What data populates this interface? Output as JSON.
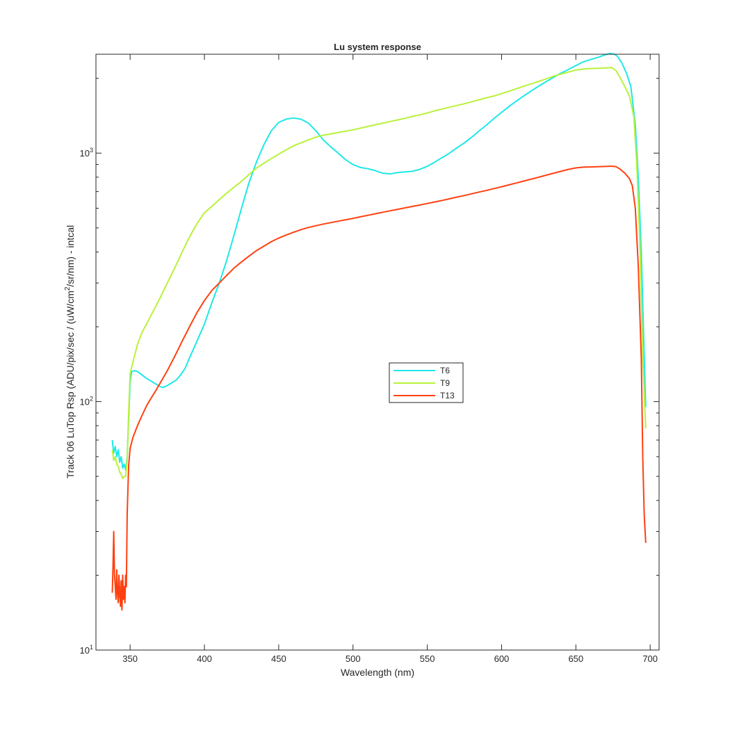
{
  "chart_data": {
    "type": "line",
    "title": "Lu system response",
    "xlabel": "Wavelength (nm)",
    "ylabel_parts": [
      "Track 06 LuTop Rsp (ADU/pix/sec / (uW/cm",
      "2",
      "/sr/nm) - intcal"
    ],
    "xlim": [
      327,
      706
    ],
    "ylim": [
      10,
      2500
    ],
    "yscale": "log",
    "grid": false,
    "legend_position": "center-right",
    "x_ticks": [
      350,
      400,
      450,
      500,
      550,
      600,
      650,
      700
    ],
    "y_major_ticks": [
      {
        "value": 10,
        "base": "10",
        "exp": "1"
      },
      {
        "value": 100,
        "base": "10",
        "exp": "2"
      },
      {
        "value": 1000,
        "base": "10",
        "exp": "3"
      }
    ],
    "series": [
      {
        "name": "T6",
        "color": "#1ee8e8",
        "points": [
          [
            338,
            70
          ],
          [
            339,
            62
          ],
          [
            340,
            66
          ],
          [
            341,
            60
          ],
          [
            342,
            64
          ],
          [
            343,
            57
          ],
          [
            344,
            60
          ],
          [
            345,
            54
          ],
          [
            346,
            56
          ],
          [
            347,
            53
          ],
          [
            348,
            60
          ],
          [
            349,
            85
          ],
          [
            350,
            120
          ],
          [
            351,
            132
          ],
          [
            353,
            133
          ],
          [
            355,
            132
          ],
          [
            358,
            128
          ],
          [
            361,
            124
          ],
          [
            364,
            121
          ],
          [
            367,
            118
          ],
          [
            370,
            115
          ],
          [
            372,
            114
          ],
          [
            375,
            116
          ],
          [
            378,
            119
          ],
          [
            381,
            122
          ],
          [
            384,
            128
          ],
          [
            387,
            136
          ],
          [
            390,
            150
          ],
          [
            395,
            175
          ],
          [
            400,
            205
          ],
          [
            405,
            250
          ],
          [
            410,
            300
          ],
          [
            415,
            370
          ],
          [
            420,
            470
          ],
          [
            425,
            600
          ],
          [
            430,
            760
          ],
          [
            435,
            920
          ],
          [
            440,
            1080
          ],
          [
            445,
            1230
          ],
          [
            450,
            1330
          ],
          [
            455,
            1370
          ],
          [
            460,
            1385
          ],
          [
            465,
            1370
          ],
          [
            470,
            1320
          ],
          [
            475,
            1230
          ],
          [
            480,
            1130
          ],
          [
            485,
            1060
          ],
          [
            490,
            1000
          ],
          [
            495,
            940
          ],
          [
            500,
            900
          ],
          [
            505,
            875
          ],
          [
            510,
            865
          ],
          [
            515,
            850
          ],
          [
            520,
            830
          ],
          [
            525,
            825
          ],
          [
            530,
            835
          ],
          [
            535,
            840
          ],
          [
            540,
            845
          ],
          [
            545,
            860
          ],
          [
            550,
            885
          ],
          [
            555,
            920
          ],
          [
            560,
            960
          ],
          [
            565,
            1000
          ],
          [
            570,
            1050
          ],
          [
            575,
            1100
          ],
          [
            580,
            1160
          ],
          [
            585,
            1230
          ],
          [
            590,
            1300
          ],
          [
            595,
            1380
          ],
          [
            600,
            1460
          ],
          [
            605,
            1540
          ],
          [
            610,
            1620
          ],
          [
            615,
            1700
          ],
          [
            620,
            1780
          ],
          [
            625,
            1860
          ],
          [
            630,
            1940
          ],
          [
            635,
            2020
          ],
          [
            640,
            2100
          ],
          [
            645,
            2170
          ],
          [
            650,
            2250
          ],
          [
            655,
            2330
          ],
          [
            660,
            2380
          ],
          [
            665,
            2430
          ],
          [
            670,
            2490
          ],
          [
            673,
            2520
          ],
          [
            676,
            2500
          ],
          [
            678,
            2450
          ],
          [
            681,
            2300
          ],
          [
            684,
            2100
          ],
          [
            687,
            1850
          ],
          [
            690,
            1300
          ],
          [
            692,
            800
          ],
          [
            694,
            400
          ],
          [
            696,
            150
          ],
          [
            697,
            95
          ]
        ]
      },
      {
        "name": "T9",
        "color": "#b8f23a",
        "points": [
          [
            338,
            64
          ],
          [
            339,
            58
          ],
          [
            340,
            60
          ],
          [
            341,
            56
          ],
          [
            342,
            55
          ],
          [
            343,
            52
          ],
          [
            344,
            51
          ],
          [
            345,
            49
          ],
          [
            346,
            50
          ],
          [
            347,
            50
          ],
          [
            348,
            58
          ],
          [
            349,
            90
          ],
          [
            350,
            130
          ],
          [
            352,
            145
          ],
          [
            355,
            170
          ],
          [
            358,
            190
          ],
          [
            361,
            205
          ],
          [
            364,
            222
          ],
          [
            367,
            240
          ],
          [
            370,
            260
          ],
          [
            375,
            300
          ],
          [
            380,
            345
          ],
          [
            385,
            400
          ],
          [
            390,
            460
          ],
          [
            395,
            520
          ],
          [
            400,
            575
          ],
          [
            405,
            610
          ],
          [
            410,
            650
          ],
          [
            415,
            690
          ],
          [
            420,
            730
          ],
          [
            425,
            770
          ],
          [
            430,
            820
          ],
          [
            435,
            870
          ],
          [
            440,
            910
          ],
          [
            445,
            950
          ],
          [
            450,
            990
          ],
          [
            455,
            1030
          ],
          [
            460,
            1070
          ],
          [
            465,
            1100
          ],
          [
            470,
            1130
          ],
          [
            475,
            1160
          ],
          [
            480,
            1180
          ],
          [
            485,
            1195
          ],
          [
            490,
            1210
          ],
          [
            495,
            1225
          ],
          [
            500,
            1240
          ],
          [
            505,
            1260
          ],
          [
            510,
            1280
          ],
          [
            515,
            1300
          ],
          [
            520,
            1320
          ],
          [
            525,
            1340
          ],
          [
            530,
            1360
          ],
          [
            535,
            1380
          ],
          [
            540,
            1405
          ],
          [
            545,
            1425
          ],
          [
            550,
            1450
          ],
          [
            555,
            1480
          ],
          [
            560,
            1505
          ],
          [
            565,
            1530
          ],
          [
            570,
            1555
          ],
          [
            575,
            1580
          ],
          [
            580,
            1610
          ],
          [
            585,
            1640
          ],
          [
            590,
            1670
          ],
          [
            595,
            1700
          ],
          [
            600,
            1735
          ],
          [
            605,
            1775
          ],
          [
            610,
            1815
          ],
          [
            615,
            1860
          ],
          [
            620,
            1900
          ],
          [
            625,
            1945
          ],
          [
            630,
            1990
          ],
          [
            635,
            2040
          ],
          [
            640,
            2080
          ],
          [
            645,
            2120
          ],
          [
            650,
            2160
          ],
          [
            655,
            2180
          ],
          [
            660,
            2190
          ],
          [
            665,
            2195
          ],
          [
            670,
            2200
          ],
          [
            674,
            2210
          ],
          [
            677,
            2150
          ],
          [
            680,
            2000
          ],
          [
            683,
            1850
          ],
          [
            686,
            1700
          ],
          [
            689,
            1400
          ],
          [
            691,
            900
          ],
          [
            693,
            450
          ],
          [
            695,
            150
          ],
          [
            697,
            78
          ]
        ]
      },
      {
        "name": "T13",
        "color": "#ff4010",
        "points": [
          [
            338,
            17
          ],
          [
            338.5,
            22
          ],
          [
            339,
            30
          ],
          [
            339.5,
            20
          ],
          [
            340,
            18
          ],
          [
            340.5,
            16
          ],
          [
            341,
            21
          ],
          [
            341.5,
            17
          ],
          [
            342,
            15.5
          ],
          [
            342.5,
            20
          ],
          [
            343,
            17
          ],
          [
            343.5,
            15
          ],
          [
            344,
            19
          ],
          [
            344.5,
            14.5
          ],
          [
            345,
            20
          ],
          [
            345.5,
            16
          ],
          [
            346,
            18
          ],
          [
            346.5,
            15.5
          ],
          [
            347,
            20
          ],
          [
            347.5,
            18
          ],
          [
            348,
            35
          ],
          [
            349,
            55
          ],
          [
            350,
            65
          ],
          [
            352,
            72
          ],
          [
            355,
            80
          ],
          [
            358,
            88
          ],
          [
            361,
            96
          ],
          [
            364,
            103
          ],
          [
            367,
            110
          ],
          [
            370,
            118
          ],
          [
            375,
            133
          ],
          [
            380,
            152
          ],
          [
            385,
            175
          ],
          [
            390,
            200
          ],
          [
            395,
            228
          ],
          [
            400,
            255
          ],
          [
            405,
            280
          ],
          [
            410,
            300
          ],
          [
            415,
            322
          ],
          [
            420,
            345
          ],
          [
            425,
            365
          ],
          [
            430,
            385
          ],
          [
            435,
            405
          ],
          [
            440,
            422
          ],
          [
            445,
            440
          ],
          [
            450,
            455
          ],
          [
            455,
            468
          ],
          [
            460,
            480
          ],
          [
            465,
            492
          ],
          [
            470,
            502
          ],
          [
            475,
            510
          ],
          [
            480,
            518
          ],
          [
            485,
            525
          ],
          [
            490,
            532
          ],
          [
            495,
            539
          ],
          [
            500,
            546
          ],
          [
            505,
            554
          ],
          [
            510,
            562
          ],
          [
            515,
            570
          ],
          [
            520,
            578
          ],
          [
            525,
            586
          ],
          [
            530,
            594
          ],
          [
            535,
            602
          ],
          [
            540,
            610
          ],
          [
            545,
            618
          ],
          [
            550,
            627
          ],
          [
            555,
            636
          ],
          [
            560,
            645
          ],
          [
            565,
            655
          ],
          [
            570,
            665
          ],
          [
            575,
            675
          ],
          [
            580,
            686
          ],
          [
            585,
            697
          ],
          [
            590,
            708
          ],
          [
            595,
            720
          ],
          [
            600,
            732
          ],
          [
            605,
            745
          ],
          [
            610,
            758
          ],
          [
            615,
            772
          ],
          [
            620,
            786
          ],
          [
            625,
            800
          ],
          [
            630,
            815
          ],
          [
            635,
            830
          ],
          [
            640,
            845
          ],
          [
            645,
            860
          ],
          [
            650,
            872
          ],
          [
            655,
            878
          ],
          [
            660,
            880
          ],
          [
            665,
            882
          ],
          [
            670,
            884
          ],
          [
            674,
            886
          ],
          [
            677,
            882
          ],
          [
            680,
            860
          ],
          [
            683,
            830
          ],
          [
            686,
            790
          ],
          [
            688,
            740
          ],
          [
            690,
            600
          ],
          [
            692,
            350
          ],
          [
            694,
            150
          ],
          [
            695,
            60
          ],
          [
            696,
            35
          ],
          [
            697,
            27
          ]
        ]
      }
    ]
  }
}
